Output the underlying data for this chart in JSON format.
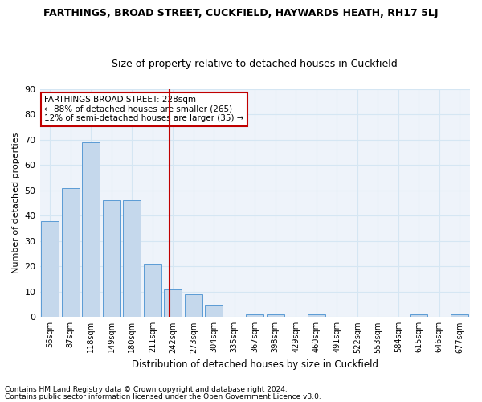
{
  "title": "FARTHINGS, BROAD STREET, CUCKFIELD, HAYWARDS HEATH, RH17 5LJ",
  "subtitle": "Size of property relative to detached houses in Cuckfield",
  "xlabel": "Distribution of detached houses by size in Cuckfield",
  "ylabel": "Number of detached properties",
  "footer1": "Contains HM Land Registry data © Crown copyright and database right 2024.",
  "footer2": "Contains public sector information licensed under the Open Government Licence v3.0.",
  "categories": [
    "56sqm",
    "87sqm",
    "118sqm",
    "149sqm",
    "180sqm",
    "211sqm",
    "242sqm",
    "273sqm",
    "304sqm",
    "335sqm",
    "367sqm",
    "398sqm",
    "429sqm",
    "460sqm",
    "491sqm",
    "522sqm",
    "553sqm",
    "584sqm",
    "615sqm",
    "646sqm",
    "677sqm"
  ],
  "values": [
    38,
    51,
    69,
    46,
    46,
    21,
    11,
    9,
    5,
    0,
    1,
    1,
    0,
    1,
    0,
    0,
    0,
    0,
    1,
    0,
    1
  ],
  "bar_color": "#c5d8ec",
  "bar_edge_color": "#5b9bd5",
  "vline_x": 5.85,
  "vline_color": "#c00000",
  "annotation_line1": "FARTHINGS BROAD STREET: 228sqm",
  "annotation_line2": "← 88% of detached houses are smaller (265)",
  "annotation_line3": "12% of semi-detached houses are larger (35) →",
  "annotation_box_color": "#ffffff",
  "annotation_box_edge_color": "#c00000",
  "ylim": [
    0,
    90
  ],
  "yticks": [
    0,
    10,
    20,
    30,
    40,
    50,
    60,
    70,
    80,
    90
  ],
  "grid_color": "#d5e6f3",
  "bg_color": "#eef3fa",
  "title_fontsize": 9,
  "subtitle_fontsize": 9,
  "footer_fontsize": 6.5
}
